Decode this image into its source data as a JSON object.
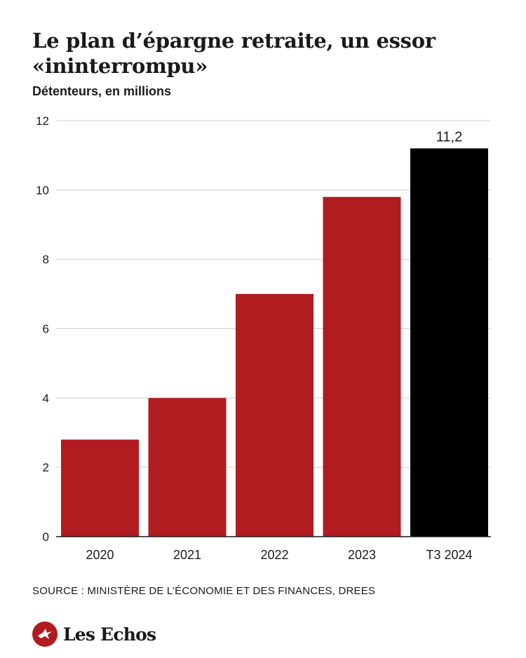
{
  "header": {
    "title": "Le plan d’épargne retraite, un essor «ininterrompu»",
    "subtitle": "Détenteurs, en millions"
  },
  "chart_data": {
    "type": "bar",
    "categories": [
      "2020",
      "2021",
      "2022",
      "2023",
      "T3 2024"
    ],
    "values": [
      2.8,
      4.0,
      7.0,
      9.8,
      11.2
    ],
    "bar_colors": [
      "#b01c20",
      "#b01c20",
      "#b01c20",
      "#b01c20",
      "#000000"
    ],
    "data_labels": [
      {
        "category": "T3 2024",
        "text": "11,2"
      }
    ],
    "title": "",
    "xlabel": "",
    "ylabel": "",
    "ylim": [
      0,
      12
    ],
    "yticks": [
      0,
      2,
      4,
      6,
      8,
      10,
      12
    ],
    "grid": true
  },
  "footer": {
    "source": "SOURCE : MINISTÈRE DE L’ÉCONOMIE ET DES FINANCES, DREES",
    "brand": "Les Echos",
    "brand_color": "#b01c20"
  }
}
